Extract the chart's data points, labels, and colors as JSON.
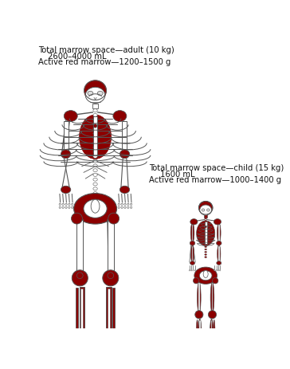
{
  "background_color": "#ffffff",
  "adult_text_line1": "Total marrow space—adult (10 kg)",
  "adult_text_line2": "2600–4000 mL",
  "adult_text_line3": "Active red marrow—1200–1500 g",
  "child_text_line1": "Total marrow space—child (15 kg)",
  "child_text_line2": "1600 mL",
  "child_text_line3": "Active red marrow—1000–1400 g",
  "red_color": "#8B0000",
  "bone_color": "#ffffff",
  "outline_color": "#555555",
  "fig_width": 3.64,
  "fig_height": 4.64,
  "dpi": 100
}
